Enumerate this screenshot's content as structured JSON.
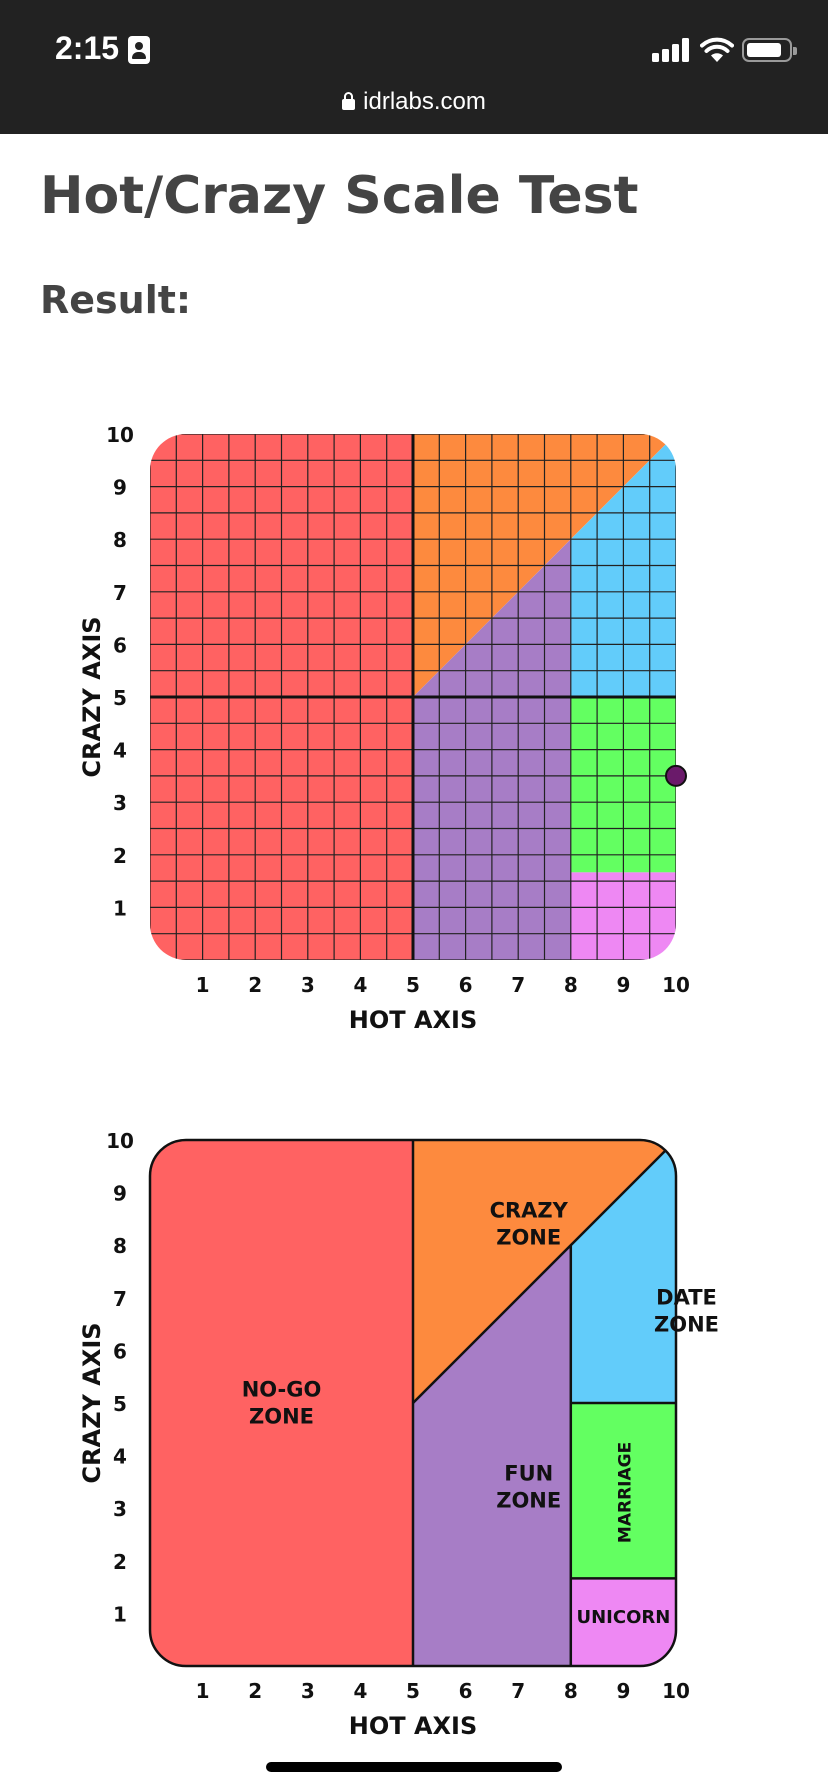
{
  "status_bar": {
    "time": "2:15",
    "url": "idrlabs.com"
  },
  "page": {
    "title": "Hot/Crazy Scale Test",
    "result_label": "Result:"
  },
  "colors": {
    "no_go": "#ff6262",
    "crazy": "#fd8a3e",
    "fun": "#a77dc6",
    "date": "#62ccfa",
    "marriage": "#63ff61",
    "unicorn": "#ee88f3",
    "marker": "#6a1a6a"
  },
  "chart_data": [
    {
      "type": "scatter",
      "xlabel": "HOT AXIS",
      "ylabel": "CRAZY AXIS",
      "xlim": [
        0,
        10
      ],
      "ylim": [
        0,
        10
      ],
      "x_ticks": [
        "1",
        "2",
        "3",
        "4",
        "5",
        "6",
        "7",
        "8",
        "9",
        "10"
      ],
      "y_ticks": [
        "1",
        "2",
        "3",
        "4",
        "5",
        "6",
        "7",
        "8",
        "9",
        "10"
      ],
      "grid": true,
      "points": [
        {
          "x": 10,
          "y": 3.5
        }
      ]
    },
    {
      "type": "area",
      "xlabel": "HOT AXIS",
      "ylabel": "CRAZY AXIS",
      "xlim": [
        0,
        10
      ],
      "ylim": [
        0,
        10
      ],
      "x_ticks": [
        "1",
        "2",
        "3",
        "4",
        "5",
        "6",
        "7",
        "8",
        "9",
        "10"
      ],
      "y_ticks": [
        "1",
        "2",
        "3",
        "4",
        "5",
        "6",
        "7",
        "8",
        "9",
        "10"
      ],
      "grid": false,
      "zones": [
        {
          "name": "NO-GO ZONE",
          "lines": [
            "NO-GO",
            "ZONE"
          ]
        },
        {
          "name": "CRAZY ZONE",
          "lines": [
            "CRAZY",
            "ZONE"
          ]
        },
        {
          "name": "FUN ZONE",
          "lines": [
            "FUN",
            "ZONE"
          ]
        },
        {
          "name": "DATE ZONE",
          "lines": [
            "DATE",
            "ZONE"
          ]
        },
        {
          "name": "MARRIAGE",
          "lines": [
            "MARRIAGE"
          ]
        },
        {
          "name": "UNICORN",
          "lines": [
            "UNICORN"
          ]
        }
      ]
    }
  ]
}
